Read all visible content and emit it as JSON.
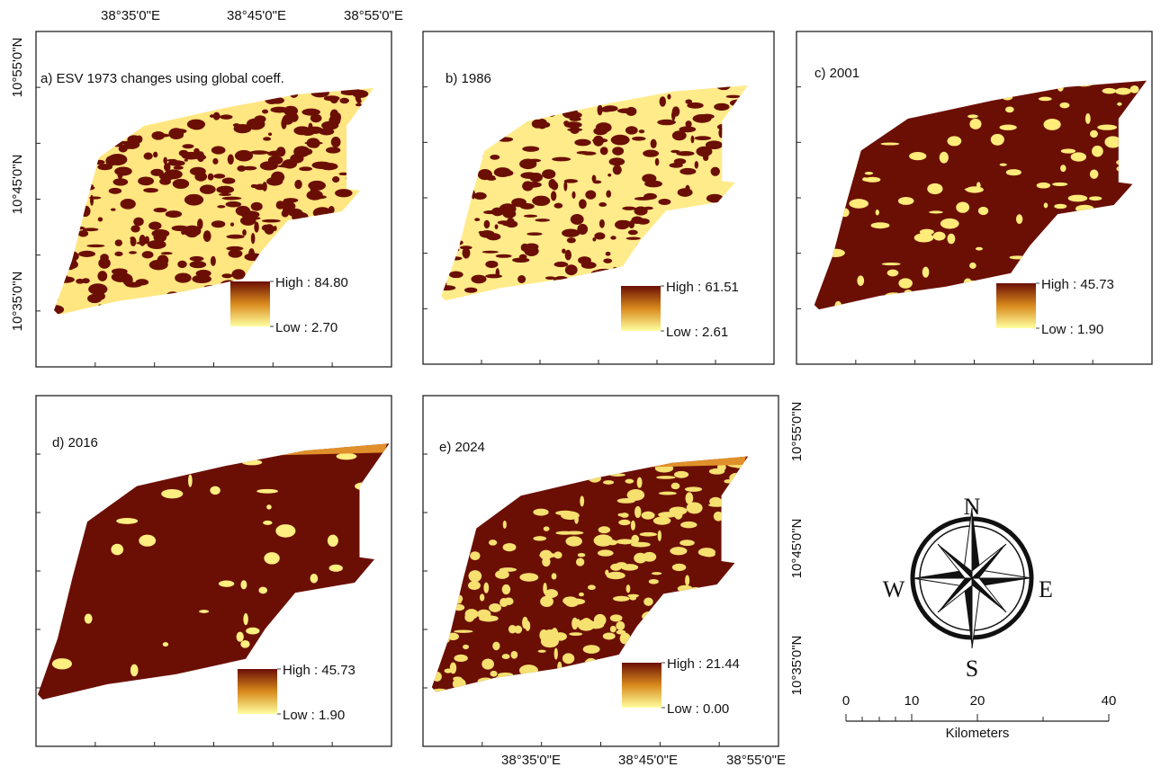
{
  "axes_labels": {
    "top_x": [
      "38°35'0\"E",
      "38°45'0\"E",
      "38°55'0\"E"
    ],
    "left_y": [
      "10°55'0\"N",
      "10°45'0\"N",
      "10°35'0\"N"
    ],
    "bottom_x": [
      "38°35'0\"E",
      "38°45'0\"E",
      "38°55'0\"E"
    ],
    "right_y": [
      "10°55'0\"N",
      "10°45'0\"N",
      "10°35'0\"N"
    ]
  },
  "panels": [
    {
      "label": "a) ESV 1973 changes using global coeff.",
      "high": "High : 84.80",
      "low": "Low : 2.70"
    },
    {
      "label": "b)  1986",
      "high": "High : 61.51",
      "low": "Low : 2.61"
    },
    {
      "label": "c) 2001",
      "high": "High : 45.73",
      "low": "Low : 1.90"
    },
    {
      "label": "d) 2016",
      "high": "High : 45.73",
      "low": "Low : 1.90"
    },
    {
      "label": "e) 2024",
      "high": "High : 21.44",
      "low": "Low : 0.00"
    }
  ],
  "compass": {
    "north": "N",
    "south": "S",
    "east": "E",
    "west": "W"
  },
  "scale_bar": {
    "ticks": [
      "0",
      "10",
      "20",
      "40"
    ],
    "unit": "Kilometers"
  }
}
